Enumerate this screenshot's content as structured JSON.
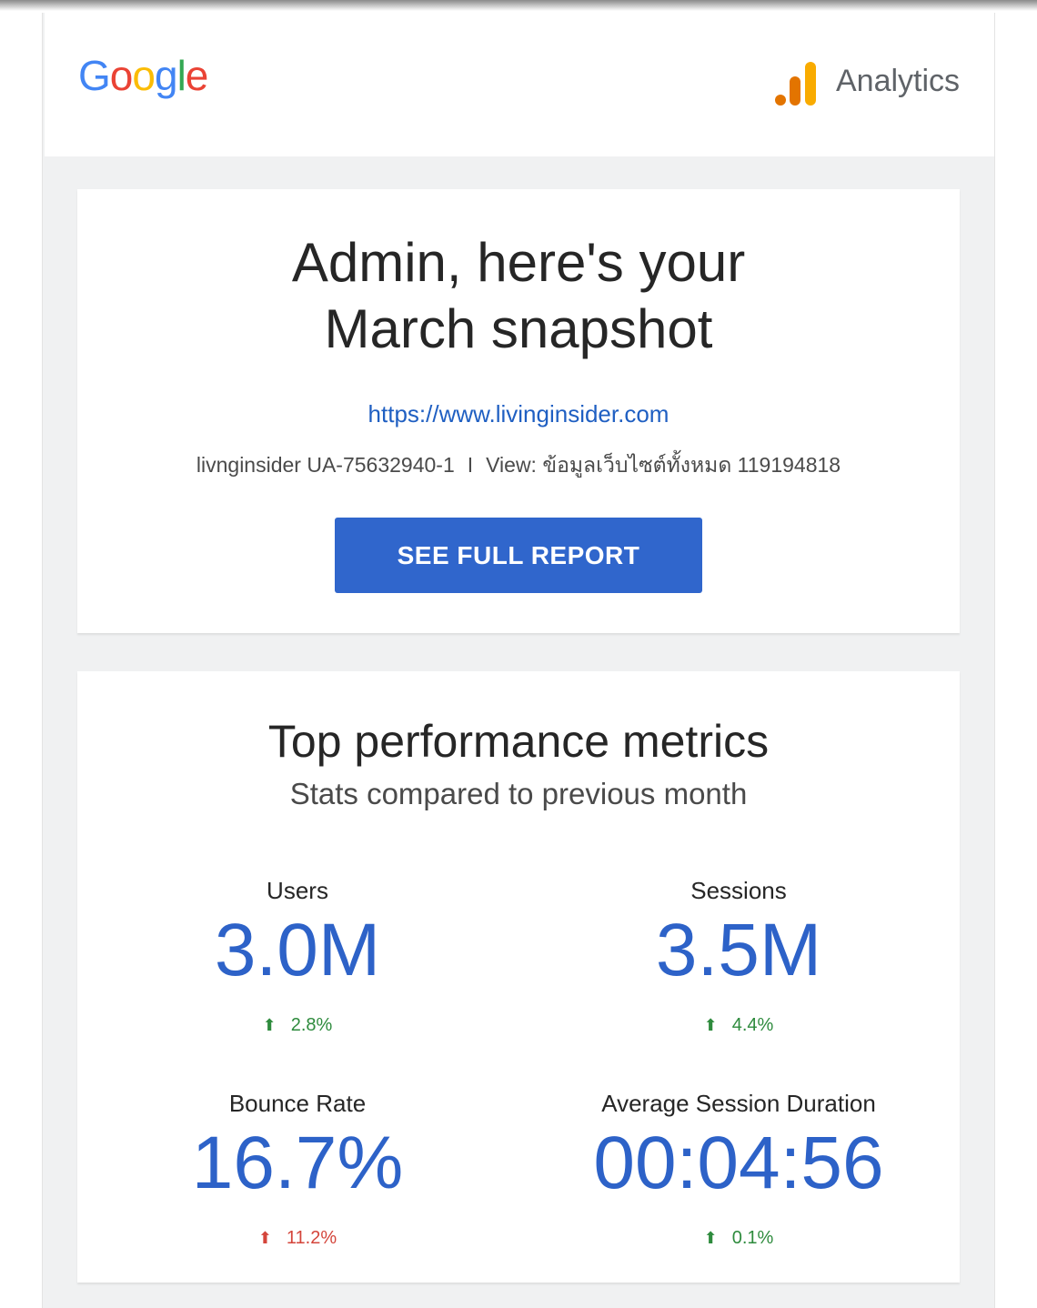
{
  "header": {
    "google_logo_letters": [
      {
        "char": "G",
        "color": "#4285F4"
      },
      {
        "char": "o",
        "color": "#EA4335"
      },
      {
        "char": "o",
        "color": "#FBBC05"
      },
      {
        "char": "g",
        "color": "#4285F4"
      },
      {
        "char": "l",
        "color": "#34A853"
      },
      {
        "char": "e",
        "color": "#EA4335"
      }
    ],
    "analytics_icon": "google-analytics-bars-icon",
    "analytics_icon_colors": [
      "#E37400",
      "#F9AB00"
    ],
    "analytics_label": "Analytics"
  },
  "hero": {
    "title_line1": "Admin, here's your",
    "title_line2": "March snapshot",
    "site_url": "https://www.livinginsider.com",
    "account_name": "livnginsider UA-75632940-1",
    "separator": "I",
    "view_label": "View: ข้อมูลเว็บไซต์ทั้งหมด 119194818",
    "button_label": "SEE FULL REPORT"
  },
  "metrics": {
    "title": "Top performance metrics",
    "subtitle": "Stats compared to previous month",
    "items": [
      {
        "label": "Users",
        "value": "3.0M",
        "change": "2.8%",
        "direction": "up",
        "arrow": "⬆",
        "color": "#2e8b3d"
      },
      {
        "label": "Sessions",
        "value": "3.5M",
        "change": "4.4%",
        "direction": "up",
        "arrow": "⬆",
        "color": "#2e8b3d"
      },
      {
        "label": "Bounce Rate",
        "value": "16.7%",
        "change": "11.2%",
        "direction": "up",
        "arrow": "⬆",
        "color": "#d4453b"
      },
      {
        "label": "Average Session Duration",
        "value": "00:04:56",
        "change": "0.1%",
        "direction": "up",
        "arrow": "⬆",
        "color": "#2e8b3d"
      }
    ]
  },
  "colors": {
    "accent_blue": "#3066cc",
    "metric_value_blue": "#2d62c8",
    "link_blue": "#1f5fc2",
    "positive_green": "#2e8b3d",
    "negative_red": "#d4453b",
    "background_gray": "#f0f1f2"
  }
}
